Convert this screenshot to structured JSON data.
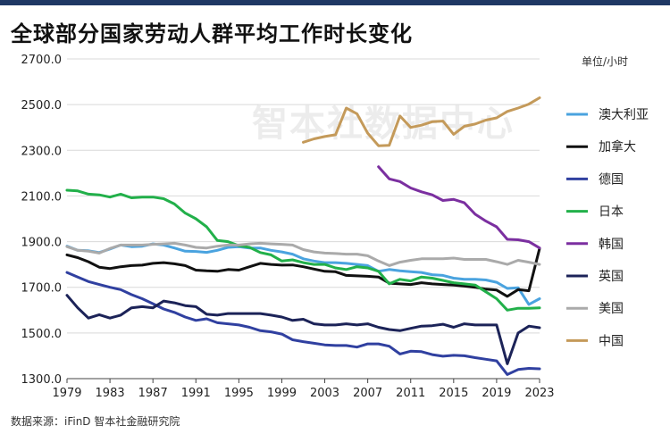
{
  "title": "全球部分国家劳动人群平均工作时长变化",
  "unit": "单位/小时",
  "watermark": "智本社数据中心",
  "source": "数据来源：iFinD 智本社金融研究院",
  "chart_data": {
    "type": "line",
    "title": "全球部分国家劳动人群平均工作时长变化",
    "ylim": [
      1300,
      2700
    ],
    "yticks": [
      "1300.0",
      "1500.0",
      "1700.0",
      "1900.0",
      "2100.0",
      "2300.0",
      "2500.0",
      "2700.0"
    ],
    "xlim": [
      1979,
      2023
    ],
    "xticks": [
      "1979",
      "1983",
      "1987",
      "1991",
      "1995",
      "1999",
      "2003",
      "2007",
      "2011",
      "2015",
      "2019",
      "2023"
    ],
    "grid": "horizontal",
    "legend_position": "right",
    "series": [
      {
        "name": "澳大利亚",
        "color": "#4aa3df",
        "x": [
          1979,
          1980,
          1981,
          1982,
          1983,
          1984,
          1985,
          1986,
          1987,
          1988,
          1989,
          1990,
          1991,
          1992,
          1993,
          1994,
          1995,
          1996,
          1997,
          1998,
          1999,
          2000,
          2001,
          2002,
          2003,
          2004,
          2005,
          2006,
          2007,
          2008,
          2009,
          2010,
          2011,
          2012,
          2013,
          2014,
          2015,
          2016,
          2017,
          2018,
          2019,
          2020,
          2021,
          2022,
          2023
        ],
        "values": [
          1880,
          1862,
          1860,
          1852,
          1868,
          1885,
          1878,
          1880,
          1890,
          1885,
          1872,
          1858,
          1857,
          1853,
          1862,
          1875,
          1878,
          1872,
          1872,
          1862,
          1855,
          1845,
          1825,
          1815,
          1808,
          1808,
          1805,
          1800,
          1795,
          1770,
          1778,
          1772,
          1768,
          1765,
          1755,
          1752,
          1740,
          1735,
          1735,
          1732,
          1722,
          1695,
          1698,
          1625,
          1650
        ]
      },
      {
        "name": "加拿大",
        "color": "#111111",
        "x": [
          1979,
          1980,
          1981,
          1982,
          1983,
          1984,
          1985,
          1986,
          1987,
          1988,
          1989,
          1990,
          1991,
          1992,
          1993,
          1994,
          1995,
          1996,
          1997,
          1998,
          1999,
          2000,
          2001,
          2002,
          2003,
          2004,
          2005,
          2006,
          2007,
          2008,
          2009,
          2010,
          2011,
          2012,
          2013,
          2014,
          2015,
          2016,
          2017,
          2018,
          2019,
          2020,
          2021,
          2022,
          2023
        ],
        "values": [
          1842,
          1830,
          1812,
          1788,
          1782,
          1790,
          1795,
          1797,
          1805,
          1808,
          1803,
          1795,
          1775,
          1772,
          1770,
          1778,
          1775,
          1790,
          1805,
          1800,
          1797,
          1798,
          1790,
          1780,
          1770,
          1768,
          1752,
          1750,
          1748,
          1745,
          1718,
          1715,
          1712,
          1720,
          1715,
          1712,
          1710,
          1705,
          1700,
          1692,
          1688,
          1660,
          1690,
          1685,
          1870
        ]
      },
      {
        "name": "德国",
        "color": "#3040a0",
        "x": [
          1979,
          1980,
          1981,
          1982,
          1983,
          1984,
          1985,
          1986,
          1987,
          1988,
          1989,
          1990,
          1991,
          1992,
          1993,
          1994,
          1995,
          1996,
          1997,
          1998,
          1999,
          2000,
          2001,
          2002,
          2003,
          2004,
          2005,
          2006,
          2007,
          2008,
          2009,
          2010,
          2011,
          2012,
          2013,
          2014,
          2015,
          2016,
          2017,
          2018,
          2019,
          2020,
          2021,
          2022,
          2023
        ],
        "values": [
          1765,
          1745,
          1725,
          1712,
          1700,
          1690,
          1668,
          1650,
          1628,
          1605,
          1590,
          1570,
          1555,
          1562,
          1545,
          1540,
          1535,
          1525,
          1510,
          1505,
          1495,
          1470,
          1462,
          1455,
          1448,
          1445,
          1445,
          1438,
          1452,
          1452,
          1442,
          1408,
          1420,
          1418,
          1405,
          1398,
          1402,
          1400,
          1392,
          1385,
          1378,
          1318,
          1340,
          1345,
          1343
        ]
      },
      {
        "name": "日本",
        "color": "#22b04a",
        "x": [
          1979,
          1980,
          1981,
          1982,
          1983,
          1984,
          1985,
          1986,
          1987,
          1988,
          1989,
          1990,
          1991,
          1992,
          1993,
          1994,
          1995,
          1996,
          1997,
          1998,
          1999,
          2000,
          2001,
          2002,
          2003,
          2004,
          2005,
          2006,
          2007,
          2008,
          2009,
          2010,
          2011,
          2012,
          2013,
          2014,
          2015,
          2016,
          2017,
          2018,
          2019,
          2020,
          2021,
          2022,
          2023
        ],
        "values": [
          2125,
          2122,
          2108,
          2105,
          2095,
          2108,
          2092,
          2095,
          2095,
          2088,
          2065,
          2025,
          2000,
          1965,
          1905,
          1900,
          1882,
          1875,
          1852,
          1842,
          1815,
          1820,
          1808,
          1800,
          1800,
          1785,
          1778,
          1790,
          1785,
          1770,
          1715,
          1735,
          1728,
          1745,
          1740,
          1730,
          1720,
          1715,
          1710,
          1680,
          1650,
          1600,
          1608,
          1608,
          1610
        ]
      },
      {
        "name": "韩国",
        "color": "#7b2fa0",
        "x": [
          2008,
          2009,
          2010,
          2011,
          2012,
          2013,
          2014,
          2015,
          2016,
          2017,
          2018,
          2019,
          2020,
          2021,
          2022,
          2023
        ],
        "values": [
          2228,
          2175,
          2163,
          2135,
          2118,
          2105,
          2080,
          2085,
          2070,
          2020,
          1990,
          1965,
          1910,
          1908,
          1900,
          1872
        ]
      },
      {
        "name": "英国",
        "color": "#1c2358",
        "x": [
          1979,
          1980,
          1981,
          1982,
          1983,
          1984,
          1985,
          1986,
          1987,
          1988,
          1989,
          1990,
          1991,
          1992,
          1993,
          1994,
          1995,
          1996,
          1997,
          1998,
          1999,
          2000,
          2001,
          2002,
          2003,
          2004,
          2005,
          2006,
          2007,
          2008,
          2009,
          2010,
          2011,
          2012,
          2013,
          2014,
          2015,
          2016,
          2017,
          2018,
          2019,
          2020,
          2021,
          2022,
          2023
        ],
        "values": [
          1665,
          1610,
          1565,
          1580,
          1565,
          1578,
          1610,
          1615,
          1610,
          1640,
          1632,
          1620,
          1615,
          1582,
          1578,
          1585,
          1585,
          1585,
          1585,
          1578,
          1570,
          1555,
          1560,
          1540,
          1535,
          1535,
          1540,
          1535,
          1540,
          1525,
          1515,
          1510,
          1520,
          1530,
          1532,
          1538,
          1525,
          1540,
          1535,
          1535,
          1535,
          1365,
          1500,
          1530,
          1523
        ]
      },
      {
        "name": "美国",
        "color": "#aaaaaa",
        "x": [
          1979,
          1980,
          1981,
          1982,
          1983,
          1984,
          1985,
          1986,
          1987,
          1988,
          1989,
          1990,
          1991,
          1992,
          1993,
          1994,
          1995,
          1996,
          1997,
          1998,
          1999,
          2000,
          2001,
          2002,
          2003,
          2004,
          2005,
          2006,
          2007,
          2008,
          2009,
          2010,
          2011,
          2012,
          2013,
          2014,
          2015,
          2016,
          2017,
          2018,
          2019,
          2020,
          2021,
          2022,
          2023
        ],
        "values": [
          1878,
          1862,
          1858,
          1850,
          1870,
          1885,
          1885,
          1885,
          1888,
          1890,
          1893,
          1885,
          1875,
          1872,
          1880,
          1885,
          1885,
          1890,
          1893,
          1890,
          1888,
          1885,
          1865,
          1855,
          1850,
          1848,
          1845,
          1845,
          1838,
          1815,
          1795,
          1810,
          1818,
          1825,
          1825,
          1825,
          1828,
          1822,
          1822,
          1822,
          1812,
          1800,
          1818,
          1810,
          1800
        ]
      },
      {
        "name": "中国",
        "color": "#c49a5a",
        "x": [
          2001,
          2002,
          2003,
          2004,
          2005,
          2006,
          2007,
          2008,
          2009,
          2010,
          2011,
          2012,
          2013,
          2014,
          2015,
          2016,
          2017,
          2018,
          2019,
          2020,
          2021,
          2022,
          2023
        ],
        "values": [
          2335,
          2350,
          2360,
          2368,
          2485,
          2460,
          2375,
          2320,
          2322,
          2450,
          2400,
          2410,
          2425,
          2428,
          2370,
          2405,
          2415,
          2432,
          2442,
          2470,
          2485,
          2502,
          2530
        ]
      }
    ]
  }
}
